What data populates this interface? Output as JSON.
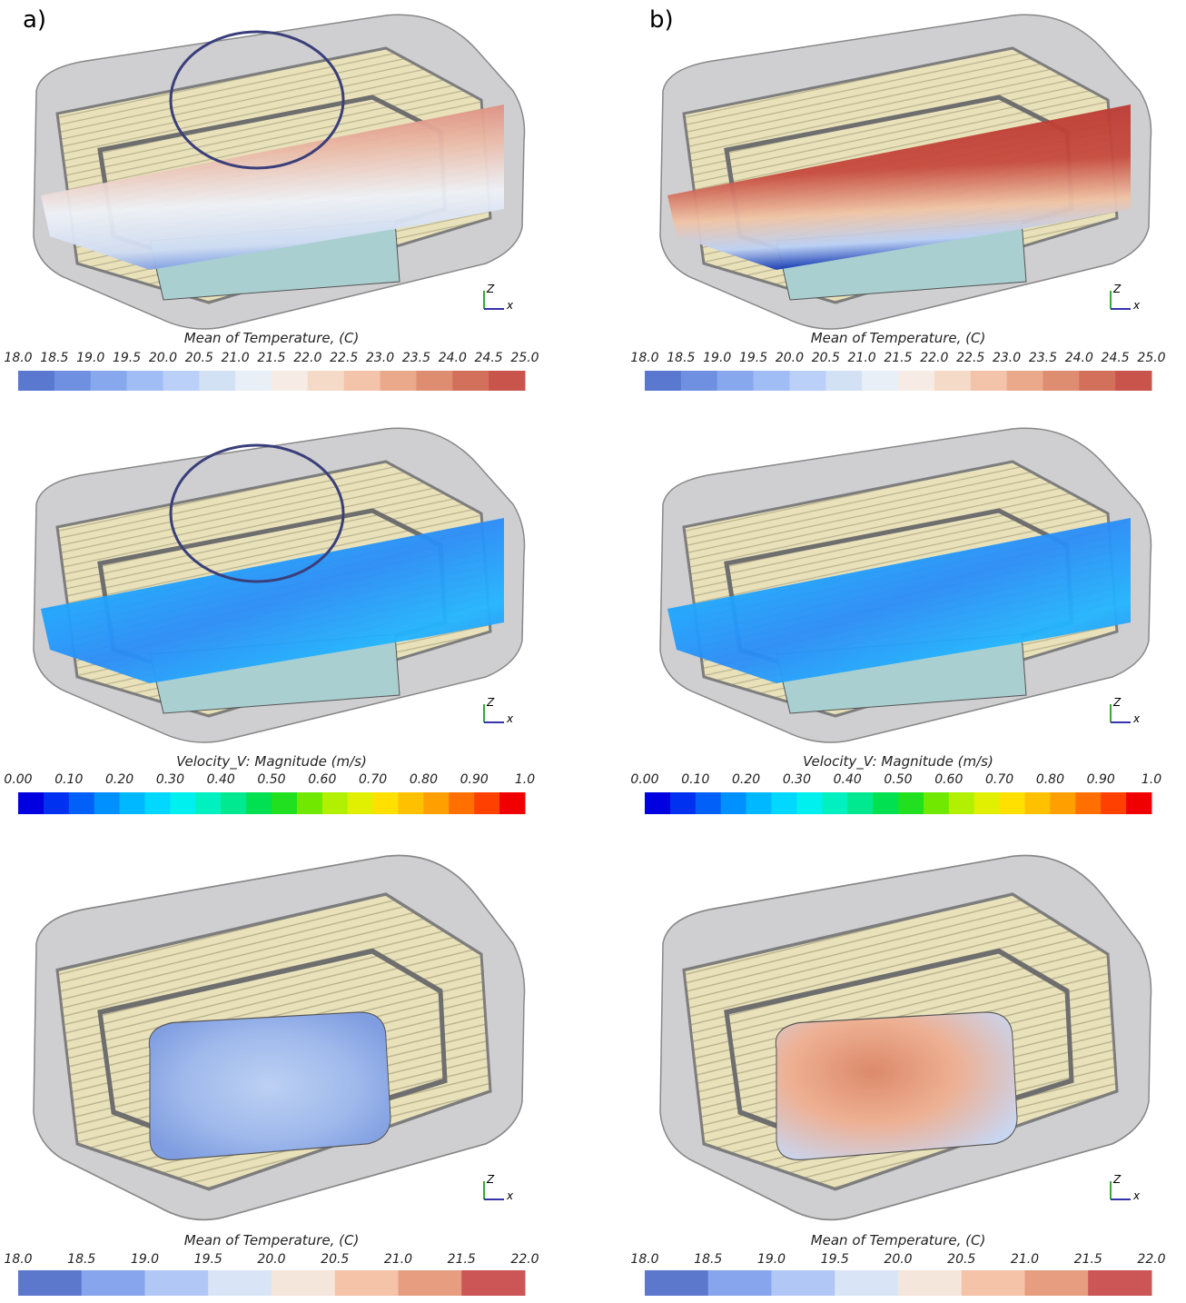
{
  "panels": [
    {
      "label": "a)"
    },
    {
      "label": "b)"
    }
  ],
  "plots": [
    {
      "axis_labels": [
        "Z",
        "x"
      ],
      "colorbar": {
        "title": "Mean of Temperature, (C)",
        "ticks": [
          "18.0",
          "18.5",
          "19.0",
          "19.5",
          "20.0",
          "20.5",
          "21.0",
          "21.5",
          "22.0",
          "22.5",
          "23.0",
          "23.5",
          "24.0",
          "24.5",
          "25.0"
        ],
        "colors": [
          "#5a78d0",
          "#6f8fe0",
          "#88a8ee",
          "#a1bdf6",
          "#bbd0f8",
          "#d3e1f5",
          "#e9eff6",
          "#f6ece5",
          "#f6dac8",
          "#f3c4a9",
          "#eaa98b",
          "#de8d71",
          "#d3705b",
          "#c9544c"
        ]
      }
    },
    {
      "axis_labels": [
        "Z",
        "x"
      ],
      "colorbar": {
        "title": "Mean of Temperature, (C)",
        "ticks": [
          "18.0",
          "18.5",
          "19.0",
          "19.5",
          "20.0",
          "20.5",
          "21.0",
          "21.5",
          "22.0",
          "22.5",
          "23.0",
          "23.5",
          "24.0",
          "24.5",
          "25.0"
        ],
        "colors": [
          "#5a78d0",
          "#6f8fe0",
          "#88a8ee",
          "#a1bdf6",
          "#bbd0f8",
          "#d3e1f5",
          "#e9eff6",
          "#f6ece5",
          "#f6dac8",
          "#f3c4a9",
          "#eaa98b",
          "#de8d71",
          "#d3705b",
          "#c9544c"
        ]
      }
    },
    {
      "axis_labels": [
        "Z",
        "x"
      ],
      "colorbar": {
        "title": "Velocity_V: Magnitude (m/s)",
        "ticks": [
          "0.00",
          "0.10",
          "0.20",
          "0.30",
          "0.40",
          "0.50",
          "0.60",
          "0.70",
          "0.80",
          "0.90",
          "1.0"
        ],
        "colors": [
          "#0000e0",
          "#0030f0",
          "#0060f8",
          "#0090ff",
          "#00b8ff",
          "#00d8ff",
          "#00f0f0",
          "#00f0c0",
          "#00e890",
          "#00e050",
          "#20e020",
          "#70e800",
          "#b0f000",
          "#e0f000",
          "#ffe000",
          "#ffc000",
          "#ffa000",
          "#ff7000",
          "#ff4000",
          "#f00000"
        ]
      }
    },
    {
      "axis_labels": [
        "Z",
        "x"
      ],
      "colorbar": {
        "title": "Velocity_V: Magnitude (m/s)",
        "ticks": [
          "0.00",
          "0.10",
          "0.20",
          "0.30",
          "0.40",
          "0.50",
          "0.60",
          "0.70",
          "0.80",
          "0.90",
          "1.0"
        ],
        "colors": [
          "#0000e0",
          "#0030f0",
          "#0060f8",
          "#0090ff",
          "#00b8ff",
          "#00d8ff",
          "#00f0f0",
          "#00f0c0",
          "#00e890",
          "#00e050",
          "#20e020",
          "#70e800",
          "#b0f000",
          "#e0f000",
          "#ffe000",
          "#ffc000",
          "#ffa000",
          "#ff7000",
          "#ff4000",
          "#f00000"
        ]
      }
    },
    {
      "axis_labels": [
        "Z",
        "x"
      ],
      "colorbar": {
        "title": "Mean of Temperature, (C)",
        "ticks": [
          "18.0",
          "18.5",
          "19.0",
          "19.5",
          "20.0",
          "20.5",
          "21.0",
          "21.5",
          "22.0"
        ],
        "colors": [
          "#5b78cc",
          "#87a5ec",
          "#b1c8f7",
          "#d9e5f6",
          "#f5e6dc",
          "#f4c3a8",
          "#e79d80",
          "#cc5555"
        ]
      }
    },
    {
      "axis_labels": [
        "Z",
        "x"
      ],
      "colorbar": {
        "title": "Mean of Temperature, (C)",
        "ticks": [
          "18.0",
          "18.5",
          "19.0",
          "19.5",
          "20.0",
          "20.5",
          "21.0",
          "21.5",
          "22.0"
        ],
        "colors": [
          "#5b78cc",
          "#87a5ec",
          "#b1c8f7",
          "#d9e5f6",
          "#f5e6dc",
          "#f4c3a8",
          "#e79d80",
          "#cc5555"
        ]
      }
    }
  ]
}
